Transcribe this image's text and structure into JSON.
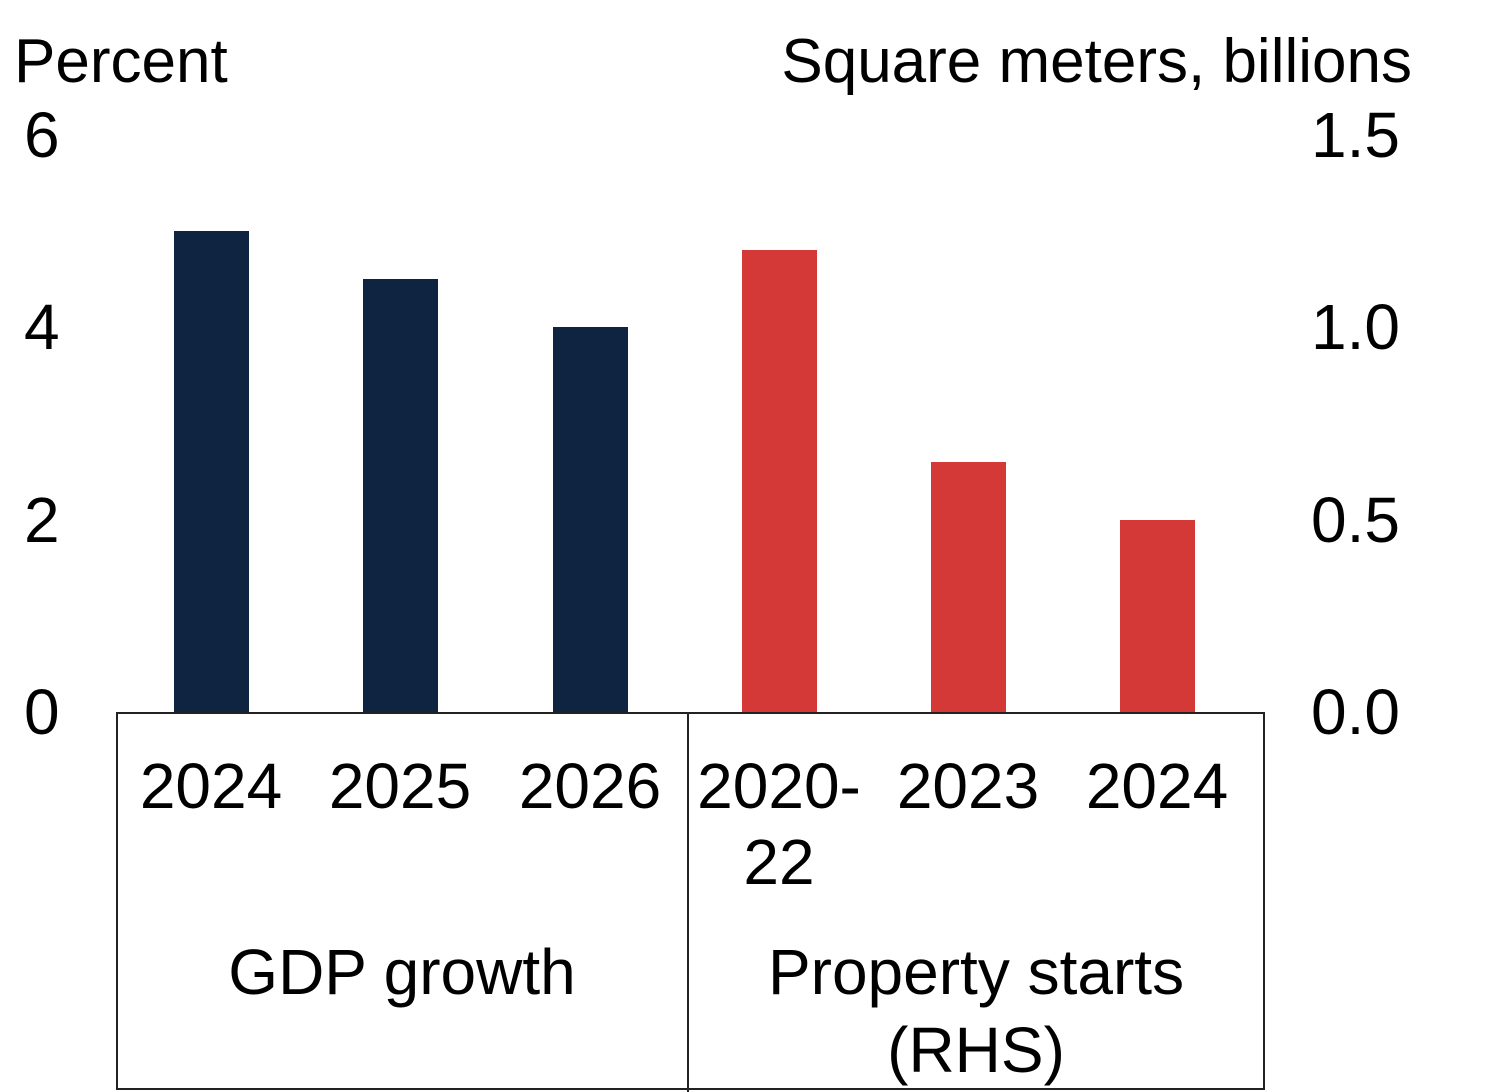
{
  "chart_data": {
    "type": "bar",
    "dual_axis": true,
    "grid": false,
    "legend": "none",
    "left_axis": {
      "label": "Percent",
      "range": [
        0,
        6
      ],
      "ticks": [
        {
          "label": "6",
          "value": 6
        },
        {
          "label": "4",
          "value": 4
        },
        {
          "label": "2",
          "value": 2
        },
        {
          "label": "0",
          "value": 0
        }
      ]
    },
    "right_axis": {
      "label": "Square meters, billions",
      "range": [
        0,
        1.5
      ],
      "ticks": [
        {
          "label": "1.5",
          "value": 1.5
        },
        {
          "label": "1.0",
          "value": 1.0
        },
        {
          "label": "0.5",
          "value": 0.5
        },
        {
          "label": "0.0",
          "value": 0.0
        }
      ]
    },
    "groups": [
      {
        "name": "GDP growth",
        "axis": "left",
        "unit": "Percent",
        "color": "#0e2441",
        "bars": [
          {
            "category": "2024",
            "value": 5.0
          },
          {
            "category": "2025",
            "value": 4.5
          },
          {
            "category": "2026",
            "value": 4.0
          }
        ]
      },
      {
        "name": "Property starts (RHS)",
        "axis": "right",
        "unit": "Square meters, billions",
        "color": "#d43937",
        "bars": [
          {
            "category": "2020-22",
            "value": 1.2
          },
          {
            "category": "2023",
            "value": 0.65
          },
          {
            "category": "2024",
            "value": 0.5
          }
        ]
      }
    ]
  }
}
